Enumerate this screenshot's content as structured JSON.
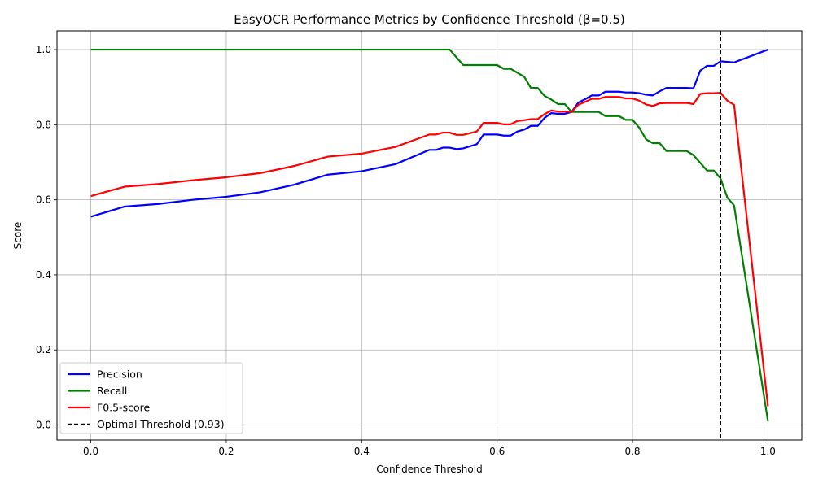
{
  "chart_data": {
    "type": "line",
    "title": "EasyOCR Performance Metrics by Confidence Threshold (β=0.5)",
    "xlabel": "Confidence Threshold",
    "ylabel": "Score",
    "xlim": [
      -0.05,
      1.05
    ],
    "ylim": [
      -0.04,
      1.05
    ],
    "xticks": [
      0.0,
      0.2,
      0.4,
      0.6,
      0.8,
      1.0
    ],
    "xtick_labels": [
      "0.0",
      "0.2",
      "0.4",
      "0.6",
      "0.8",
      "1.0"
    ],
    "yticks": [
      0.0,
      0.2,
      0.4,
      0.6,
      0.8,
      1.0
    ],
    "ytick_labels": [
      "0.0",
      "0.2",
      "0.4",
      "0.6",
      "0.8",
      "1.0"
    ],
    "grid": true,
    "legend_position": "lower-left",
    "series": [
      {
        "name": "Precision",
        "color": "#0000ff",
        "points": [
          [
            0.0,
            0.555
          ],
          [
            0.05,
            0.582
          ],
          [
            0.1,
            0.589
          ],
          [
            0.15,
            0.6
          ],
          [
            0.2,
            0.608
          ],
          [
            0.25,
            0.62
          ],
          [
            0.3,
            0.64
          ],
          [
            0.35,
            0.667
          ],
          [
            0.4,
            0.676
          ],
          [
            0.45,
            0.695
          ],
          [
            0.5,
            0.733
          ],
          [
            0.51,
            0.733
          ],
          [
            0.52,
            0.739
          ],
          [
            0.53,
            0.739
          ],
          [
            0.54,
            0.735
          ],
          [
            0.55,
            0.737
          ],
          [
            0.57,
            0.748
          ],
          [
            0.58,
            0.774
          ],
          [
            0.6,
            0.774
          ],
          [
            0.61,
            0.771
          ],
          [
            0.62,
            0.771
          ],
          [
            0.63,
            0.782
          ],
          [
            0.64,
            0.787
          ],
          [
            0.65,
            0.797
          ],
          [
            0.66,
            0.797
          ],
          [
            0.67,
            0.818
          ],
          [
            0.68,
            0.831
          ],
          [
            0.69,
            0.829
          ],
          [
            0.7,
            0.829
          ],
          [
            0.71,
            0.834
          ],
          [
            0.72,
            0.859
          ],
          [
            0.73,
            0.868
          ],
          [
            0.74,
            0.878
          ],
          [
            0.75,
            0.878
          ],
          [
            0.76,
            0.888
          ],
          [
            0.77,
            0.888
          ],
          [
            0.78,
            0.888
          ],
          [
            0.79,
            0.886
          ],
          [
            0.8,
            0.886
          ],
          [
            0.81,
            0.884
          ],
          [
            0.82,
            0.88
          ],
          [
            0.83,
            0.878
          ],
          [
            0.84,
            0.889
          ],
          [
            0.85,
            0.898
          ],
          [
            0.86,
            0.898
          ],
          [
            0.88,
            0.898
          ],
          [
            0.89,
            0.897
          ],
          [
            0.9,
            0.944
          ],
          [
            0.91,
            0.957
          ],
          [
            0.92,
            0.957
          ],
          [
            0.93,
            0.969
          ],
          [
            0.95,
            0.966
          ],
          [
            1.0,
            1.0
          ]
        ]
      },
      {
        "name": "Recall",
        "color": "#008000",
        "points": [
          [
            0.0,
            1.0
          ],
          [
            0.53,
            1.0
          ],
          [
            0.55,
            0.959
          ],
          [
            0.6,
            0.959
          ],
          [
            0.61,
            0.949
          ],
          [
            0.62,
            0.949
          ],
          [
            0.64,
            0.928
          ],
          [
            0.65,
            0.898
          ],
          [
            0.66,
            0.898
          ],
          [
            0.67,
            0.877
          ],
          [
            0.68,
            0.867
          ],
          [
            0.69,
            0.855
          ],
          [
            0.7,
            0.855
          ],
          [
            0.71,
            0.834
          ],
          [
            0.75,
            0.834
          ],
          [
            0.76,
            0.823
          ],
          [
            0.78,
            0.823
          ],
          [
            0.79,
            0.813
          ],
          [
            0.8,
            0.813
          ],
          [
            0.81,
            0.792
          ],
          [
            0.82,
            0.761
          ],
          [
            0.83,
            0.751
          ],
          [
            0.84,
            0.751
          ],
          [
            0.85,
            0.73
          ],
          [
            0.88,
            0.73
          ],
          [
            0.89,
            0.719
          ],
          [
            0.91,
            0.678
          ],
          [
            0.92,
            0.678
          ],
          [
            0.93,
            0.657
          ],
          [
            0.94,
            0.606
          ],
          [
            0.95,
            0.585
          ],
          [
            1.0,
            0.01
          ]
        ]
      },
      {
        "name": "F0.5-score",
        "color": "#ff0000",
        "points": [
          [
            0.0,
            0.61
          ],
          [
            0.05,
            0.635
          ],
          [
            0.1,
            0.642
          ],
          [
            0.15,
            0.652
          ],
          [
            0.2,
            0.66
          ],
          [
            0.25,
            0.671
          ],
          [
            0.3,
            0.69
          ],
          [
            0.35,
            0.715
          ],
          [
            0.4,
            0.723
          ],
          [
            0.45,
            0.741
          ],
          [
            0.5,
            0.774
          ],
          [
            0.51,
            0.774
          ],
          [
            0.52,
            0.779
          ],
          [
            0.53,
            0.779
          ],
          [
            0.54,
            0.773
          ],
          [
            0.55,
            0.773
          ],
          [
            0.57,
            0.782
          ],
          [
            0.58,
            0.805
          ],
          [
            0.6,
            0.805
          ],
          [
            0.61,
            0.801
          ],
          [
            0.62,
            0.801
          ],
          [
            0.63,
            0.81
          ],
          [
            0.64,
            0.812
          ],
          [
            0.65,
            0.815
          ],
          [
            0.66,
            0.815
          ],
          [
            0.67,
            0.828
          ],
          [
            0.68,
            0.838
          ],
          [
            0.69,
            0.835
          ],
          [
            0.7,
            0.835
          ],
          [
            0.71,
            0.834
          ],
          [
            0.72,
            0.853
          ],
          [
            0.73,
            0.861
          ],
          [
            0.74,
            0.869
          ],
          [
            0.75,
            0.869
          ],
          [
            0.76,
            0.874
          ],
          [
            0.78,
            0.874
          ],
          [
            0.79,
            0.87
          ],
          [
            0.8,
            0.87
          ],
          [
            0.81,
            0.864
          ],
          [
            0.82,
            0.854
          ],
          [
            0.83,
            0.85
          ],
          [
            0.84,
            0.857
          ],
          [
            0.85,
            0.858
          ],
          [
            0.88,
            0.858
          ],
          [
            0.89,
            0.855
          ],
          [
            0.9,
            0.882
          ],
          [
            0.91,
            0.884
          ],
          [
            0.92,
            0.884
          ],
          [
            0.93,
            0.885
          ],
          [
            0.94,
            0.864
          ],
          [
            0.95,
            0.853
          ],
          [
            1.0,
            0.05
          ]
        ]
      }
    ],
    "reference_line": {
      "name": "Optimal Threshold (0.93)",
      "x": 0.93,
      "color": "#000000",
      "style": "dashed"
    }
  }
}
